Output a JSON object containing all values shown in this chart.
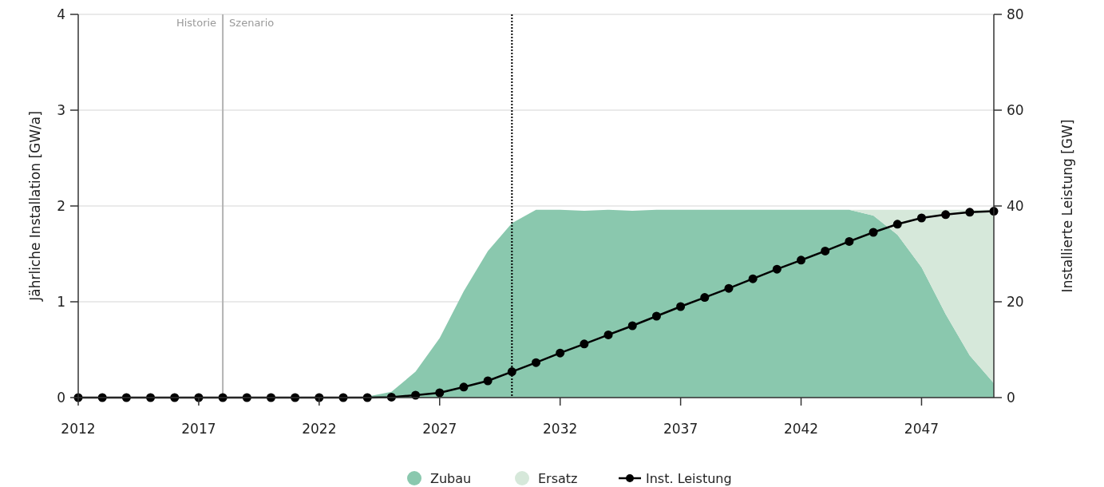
{
  "chart_data": {
    "type": "area",
    "xlabel": null,
    "ylabel": "Jährliche Installation [GW/a]",
    "y2label": "Installierte Leistung [GW]",
    "x": [
      2012,
      2013,
      2014,
      2015,
      2016,
      2017,
      2018,
      2019,
      2020,
      2021,
      2022,
      2023,
      2024,
      2025,
      2026,
      2027,
      2028,
      2029,
      2030,
      2031,
      2032,
      2033,
      2034,
      2035,
      2036,
      2037,
      2038,
      2039,
      2040,
      2041,
      2042,
      2043,
      2044,
      2045,
      2046,
      2047,
      2048,
      2049,
      2050
    ],
    "stacked": true,
    "series": [
      {
        "name": "Zubau",
        "color": "#8ac8ae",
        "values": [
          0,
          0,
          0,
          0,
          0,
          0,
          0,
          0,
          0,
          0,
          0,
          0,
          0.01,
          0.06,
          0.27,
          0.62,
          1.11,
          1.53,
          1.82,
          1.96,
          1.96,
          1.95,
          1.96,
          1.95,
          1.96,
          1.96,
          1.96,
          1.96,
          1.96,
          1.96,
          1.96,
          1.96,
          1.96,
          1.9,
          1.7,
          1.36,
          0.87,
          0.44,
          0.15
        ]
      },
      {
        "name": "Ersatz",
        "color": "#d6e8da",
        "values": [
          null,
          null,
          null,
          null,
          null,
          null,
          null,
          null,
          null,
          null,
          null,
          null,
          null,
          null,
          null,
          null,
          null,
          null,
          null,
          null,
          null,
          null,
          null,
          null,
          null,
          null,
          null,
          null,
          null,
          null,
          null,
          null,
          0,
          0.06,
          0.26,
          0.6,
          1.09,
          1.52,
          1.81
        ]
      },
      {
        "name": "Inst. Leistung",
        "type": "line",
        "axis": "y2",
        "color": "#000000",
        "marker": "circle",
        "values": [
          0,
          0,
          0,
          0,
          0,
          0,
          0,
          0,
          0,
          0,
          0,
          0,
          0,
          0.1,
          0.5,
          1.0,
          2.2,
          3.5,
          5.4,
          7.3,
          9.3,
          11.2,
          13.1,
          15.0,
          17.0,
          19.0,
          20.9,
          22.8,
          24.8,
          26.8,
          28.7,
          30.6,
          32.6,
          34.5,
          36.2,
          37.5,
          38.2,
          38.7,
          38.9
        ]
      }
    ],
    "xlim": [
      2012,
      2050
    ],
    "xticks": [
      2012,
      2017,
      2022,
      2027,
      2032,
      2037,
      2042,
      2047
    ],
    "ylim": [
      0,
      4
    ],
    "yticks": [
      0,
      1,
      2,
      3,
      4
    ],
    "y2lim": [
      0,
      80
    ],
    "y2ticks": [
      0,
      20,
      40,
      60,
      80
    ],
    "grid": "y",
    "legend": "bottom",
    "ref_lines": [
      {
        "axis": "x",
        "value": 2018,
        "color": "#b3b3b3",
        "line_style": "solid"
      },
      {
        "axis": "x",
        "value": 2030,
        "color": "#000000",
        "line_style": "dotted"
      }
    ],
    "annotations": [
      {
        "text": "Historie",
        "x": 2018,
        "y": 4
      },
      {
        "text": "Szenario",
        "x": 2018,
        "y": 4
      }
    ]
  }
}
